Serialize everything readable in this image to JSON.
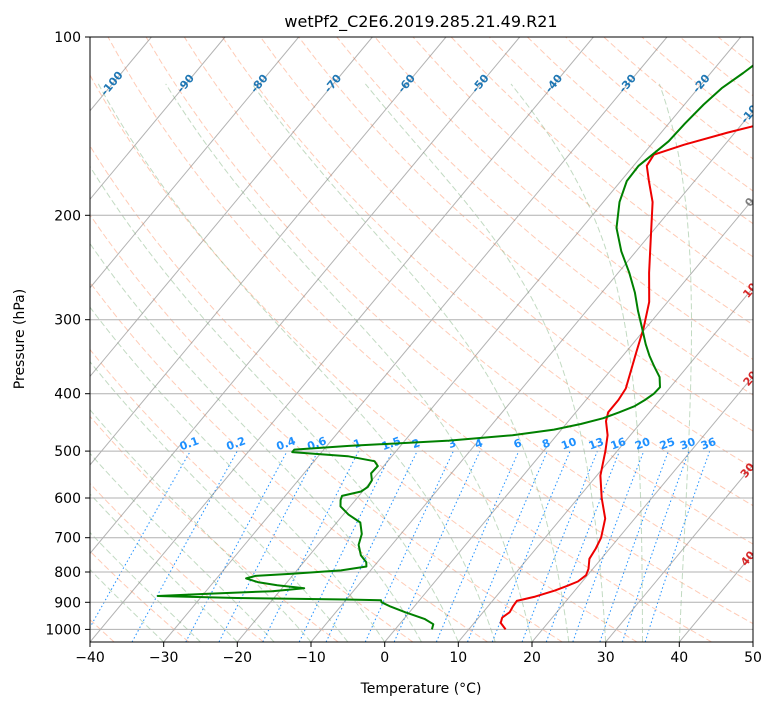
{
  "chart_data": {
    "type": "line",
    "title": "wetPf2_C2E6.2019.285.21.49.R21",
    "xlabel": "Temperature (°C)",
    "ylabel": "Pressure (hPa)",
    "xlim": [
      -40,
      50
    ],
    "ylim": [
      1050,
      100
    ],
    "y_scale": "log",
    "grid": true,
    "x_ticks": [
      -40,
      -30,
      -20,
      -10,
      0,
      10,
      20,
      30,
      40,
      50
    ],
    "y_ticks": [
      100,
      200,
      300,
      400,
      500,
      600,
      700,
      800,
      900,
      1000
    ],
    "series": [
      {
        "color": "#ee0000",
        "points": [
          [
            1000,
            15.0
          ],
          [
            975,
            13.6
          ],
          [
            955,
            13.2
          ],
          [
            935,
            13.6
          ],
          [
            915,
            13.4
          ],
          [
            895,
            13.3
          ],
          [
            880,
            15.3
          ],
          [
            860,
            17.3
          ],
          [
            845,
            18.4
          ],
          [
            830,
            19.4
          ],
          [
            810,
            19.8
          ],
          [
            790,
            19.4
          ],
          [
            760,
            18.4
          ],
          [
            730,
            18.1
          ],
          [
            700,
            17.6
          ],
          [
            650,
            16.0
          ],
          [
            600,
            13.2
          ],
          [
            550,
            10.5
          ],
          [
            500,
            8.4
          ],
          [
            470,
            6.9
          ],
          [
            445,
            5.1
          ],
          [
            430,
            4.4
          ],
          [
            410,
            4.4
          ],
          [
            392,
            4.1
          ],
          [
            370,
            3.0
          ],
          [
            340,
            1.4
          ],
          [
            310,
            -0.3
          ],
          [
            280,
            -2.5
          ],
          [
            250,
            -5.8
          ],
          [
            220,
            -9.3
          ],
          [
            190,
            -13.3
          ],
          [
            175,
            -16.2
          ],
          [
            165,
            -18.2
          ],
          [
            158,
            -18.5
          ],
          [
            152,
            -15.5
          ],
          [
            145,
            -11.0
          ],
          [
            138,
            -5.5
          ],
          [
            130,
            -2.2
          ],
          [
            122,
            -0.1
          ],
          [
            115,
            1.2
          ],
          [
            108,
            2.6
          ],
          [
            104,
            3.9
          ],
          [
            100,
            5.1
          ]
        ]
      },
      {
        "color": "#008000",
        "points": [
          [
            1000,
            5.0
          ],
          [
            980,
            4.6
          ],
          [
            960,
            2.8
          ],
          [
            935,
            -0.6
          ],
          [
            915,
            -3.2
          ],
          [
            900,
            -4.9
          ],
          [
            893,
            -5.2
          ],
          [
            890,
            -10.0
          ],
          [
            885,
            -25.0
          ],
          [
            878,
            -36.0
          ],
          [
            870,
            -29.0
          ],
          [
            862,
            -21.0
          ],
          [
            852,
            -17.0
          ],
          [
            842,
            -21.0
          ],
          [
            832,
            -24.0
          ],
          [
            820,
            -26.0
          ],
          [
            812,
            -25.0
          ],
          [
            805,
            -20.0
          ],
          [
            795,
            -14.0
          ],
          [
            783,
            -11.0
          ],
          [
            770,
            -11.5
          ],
          [
            750,
            -13.0
          ],
          [
            720,
            -14.5
          ],
          [
            690,
            -15.3
          ],
          [
            660,
            -16.8
          ],
          [
            640,
            -19.3
          ],
          [
            620,
            -21.3
          ],
          [
            605,
            -22.0
          ],
          [
            595,
            -22.3
          ],
          [
            585,
            -20.2
          ],
          [
            575,
            -19.8
          ],
          [
            560,
            -20.0
          ],
          [
            545,
            -20.9
          ],
          [
            530,
            -20.8
          ],
          [
            520,
            -21.8
          ],
          [
            510,
            -26.0
          ],
          [
            502,
            -34.0
          ],
          [
            497,
            -34.0
          ],
          [
            490,
            -27.0
          ],
          [
            480,
            -14.0
          ],
          [
            470,
            -6.0
          ],
          [
            460,
            -1.0
          ],
          [
            450,
            2.0
          ],
          [
            440,
            4.4
          ],
          [
            430,
            5.9
          ],
          [
            420,
            7.3
          ],
          [
            410,
            8.0
          ],
          [
            400,
            8.5
          ],
          [
            390,
            8.6
          ],
          [
            375,
            7.4
          ],
          [
            360,
            5.5
          ],
          [
            345,
            3.6
          ],
          [
            330,
            1.8
          ],
          [
            310,
            -0.5
          ],
          [
            290,
            -3.0
          ],
          [
            270,
            -5.5
          ],
          [
            250,
            -8.5
          ],
          [
            230,
            -12.0
          ],
          [
            210,
            -15.3
          ],
          [
            190,
            -17.8
          ],
          [
            175,
            -19.2
          ],
          [
            165,
            -19.3
          ],
          [
            158,
            -18.7
          ],
          [
            150,
            -18.0
          ],
          [
            140,
            -17.8
          ],
          [
            130,
            -17.4
          ],
          [
            122,
            -16.8
          ],
          [
            115,
            -15.6
          ],
          [
            108,
            -14.5
          ],
          [
            102,
            -13.5
          ],
          [
            100,
            -13.2
          ]
        ]
      }
    ],
    "reference_lines": [
      {
        "family": "dry_adiabats",
        "color": "#ffa07a",
        "style": "dashed"
      },
      {
        "family": "moist_adiabats",
        "color": "#8fbc8f",
        "style": "dashed"
      },
      {
        "family": "mixing_ratio",
        "color": "#1e90ff",
        "style": "dotted",
        "labels": [
          "0.1",
          "0.2",
          "0.4",
          "0.6",
          "1",
          "1.5",
          "2",
          "3",
          "4",
          "6",
          "8",
          "10",
          "13",
          "16",
          "20",
          "25",
          "30",
          "36"
        ]
      },
      {
        "family": "isotherms_skewed",
        "color": "#808080",
        "style": "solid"
      },
      {
        "family": "isotherm_labels",
        "labels": [
          "-100",
          "-90",
          "-80",
          "-70",
          "-60",
          "-50",
          "-40",
          "-30",
          "-20",
          "-10",
          "0",
          "10",
          "20",
          "30",
          "40"
        ]
      }
    ]
  }
}
